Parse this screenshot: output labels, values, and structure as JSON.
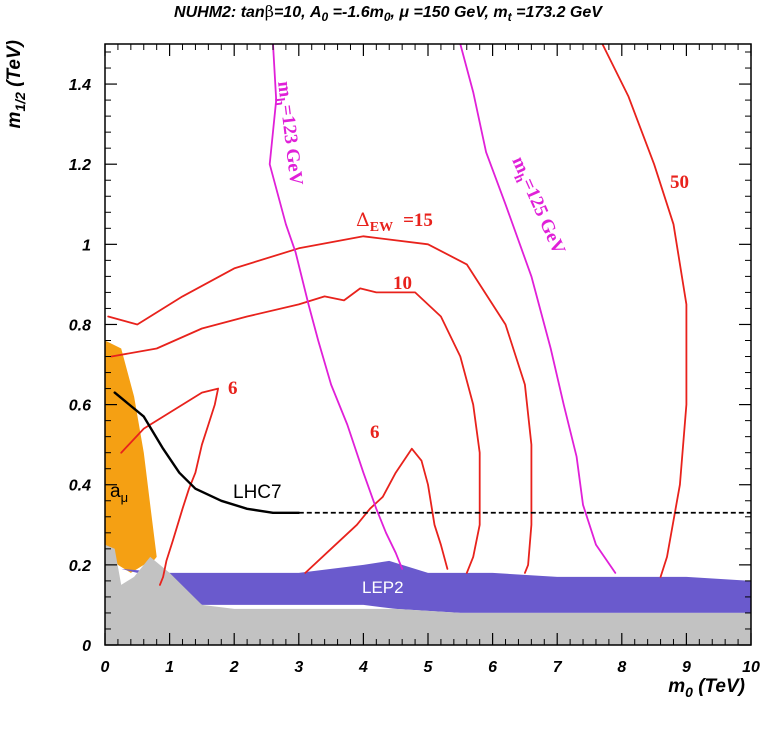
{
  "chart_data": {
    "type": "line",
    "title_prefix": "NUHM2: tan",
    "title_beta": "β",
    "title_a0": "=10, A",
    "title_sub0": "0",
    "title_a0val": " =-1.6m",
    "title_sub0b": "0",
    "title_mu": ", μ =150 GeV, m",
    "title_subt": "t",
    "title_mt": " =173.2 GeV",
    "xlabel_main": "m",
    "xlabel_sub": "0",
    "xlabel_unit": " (TeV)",
    "ylabel_main": "m",
    "ylabel_sub": "1/2",
    "ylabel_unit": " (TeV)",
    "xlim": [
      0,
      10
    ],
    "ylim": [
      0,
      1.5
    ],
    "x_ticks": [
      0,
      1,
      2,
      3,
      4,
      5,
      6,
      7,
      8,
      9,
      10
    ],
    "x_tick_labels": [
      "0",
      "1",
      "2",
      "3",
      "4",
      "5",
      "6",
      "7",
      "8",
      "9",
      "10"
    ],
    "y_ticks": [
      0,
      0.2,
      0.4,
      0.6,
      0.8,
      1.0,
      1.2,
      1.4
    ],
    "y_tick_labels": [
      "0",
      "0.2",
      "0.4",
      "0.6",
      "0.8",
      "1",
      "1.2",
      "1.4"
    ],
    "regions": [
      {
        "name": "a_mu",
        "label": "a",
        "label_sub": "μ",
        "color": "#f5a013",
        "points": [
          [
            0,
            0.76
          ],
          [
            0.25,
            0.74
          ],
          [
            0.45,
            0.62
          ],
          [
            0.6,
            0.48
          ],
          [
            0.7,
            0.35
          ],
          [
            0.8,
            0.22
          ],
          [
            0.7,
            0.2
          ],
          [
            0.6,
            0.2
          ],
          [
            0.4,
            0.18
          ],
          [
            0.2,
            0.2
          ],
          [
            0,
            0.25
          ]
        ]
      },
      {
        "name": "lep2",
        "label": "LEP2",
        "color": "#6a5acd",
        "points": [
          [
            0.25,
            0.19
          ],
          [
            1,
            0.18
          ],
          [
            2,
            0.18
          ],
          [
            3,
            0.18
          ],
          [
            4,
            0.2
          ],
          [
            4.4,
            0.21
          ],
          [
            5,
            0.18
          ],
          [
            6,
            0.18
          ],
          [
            7,
            0.17
          ],
          [
            8,
            0.17
          ],
          [
            9,
            0.17
          ],
          [
            10,
            0.16
          ],
          [
            10,
            0.08
          ],
          [
            9,
            0.08
          ],
          [
            7,
            0.08
          ],
          [
            5.5,
            0.08
          ],
          [
            4.5,
            0.09
          ],
          [
            4,
            0.1
          ],
          [
            2,
            0.1
          ],
          [
            1.5,
            0.1
          ],
          [
            1,
            0.16
          ],
          [
            0.5,
            0.18
          ],
          [
            0.25,
            0.19
          ]
        ]
      },
      {
        "name": "grey",
        "label": "",
        "color": "#c2c2c2",
        "points": [
          [
            0,
            0
          ],
          [
            0,
            0.25
          ],
          [
            0.15,
            0.24
          ],
          [
            0.25,
            0.15
          ],
          [
            0.45,
            0.17
          ],
          [
            0.7,
            0.22
          ],
          [
            1,
            0.18
          ],
          [
            1.5,
            0.1
          ],
          [
            2,
            0.09
          ],
          [
            3,
            0.09
          ],
          [
            4,
            0.09
          ],
          [
            4.5,
            0.09
          ],
          [
            5.5,
            0.08
          ],
          [
            7,
            0.08
          ],
          [
            10,
            0.08
          ],
          [
            10,
            0
          ]
        ]
      }
    ],
    "series": [
      {
        "name": "Δ_EW=6 (left)",
        "color": "#e8221c",
        "width": 1.8,
        "points": [
          [
            0.25,
            0.48
          ],
          [
            0.6,
            0.54
          ],
          [
            1,
            0.58
          ],
          [
            1.5,
            0.63
          ],
          [
            1.75,
            0.64
          ],
          [
            1.7,
            0.6
          ],
          [
            1.6,
            0.55
          ],
          [
            1.5,
            0.5
          ],
          [
            1.4,
            0.43
          ],
          [
            1.3,
            0.39
          ],
          [
            1.2,
            0.34
          ],
          [
            1.05,
            0.26
          ],
          [
            0.95,
            0.21
          ],
          [
            0.9,
            0.17
          ],
          [
            0.85,
            0.15
          ]
        ]
      },
      {
        "name": "Δ_EW=6 (right)",
        "color": "#e8221c",
        "width": 1.8,
        "points": [
          [
            3.1,
            0.18
          ],
          [
            3.5,
            0.24
          ],
          [
            3.9,
            0.3
          ],
          [
            4.1,
            0.34
          ],
          [
            4.3,
            0.37
          ],
          [
            4.5,
            0.43
          ],
          [
            4.75,
            0.49
          ],
          [
            4.9,
            0.46
          ],
          [
            5.0,
            0.4
          ],
          [
            5.1,
            0.3
          ],
          [
            5.2,
            0.25
          ],
          [
            5.3,
            0.19
          ]
        ]
      },
      {
        "name": "Δ_EW=10",
        "color": "#e8221c",
        "width": 1.8,
        "points": [
          [
            0.1,
            0.72
          ],
          [
            0.8,
            0.74
          ],
          [
            1.5,
            0.79
          ],
          [
            2.2,
            0.82
          ],
          [
            3.0,
            0.85
          ],
          [
            3.4,
            0.87
          ],
          [
            3.7,
            0.86
          ],
          [
            3.95,
            0.89
          ],
          [
            4.2,
            0.88
          ],
          [
            4.5,
            0.88
          ],
          [
            4.8,
            0.88
          ],
          [
            5.2,
            0.82
          ],
          [
            5.5,
            0.72
          ],
          [
            5.7,
            0.6
          ],
          [
            5.8,
            0.48
          ],
          [
            5.8,
            0.3
          ],
          [
            5.7,
            0.22
          ],
          [
            5.6,
            0.18
          ]
        ]
      },
      {
        "name": "Δ_EW=15",
        "color": "#e8221c",
        "width": 1.8,
        "points": [
          [
            0.05,
            0.82
          ],
          [
            0.5,
            0.8
          ],
          [
            1.2,
            0.87
          ],
          [
            2,
            0.94
          ],
          [
            3,
            0.99
          ],
          [
            4,
            1.02
          ],
          [
            5,
            1.0
          ],
          [
            5.6,
            0.95
          ],
          [
            6.2,
            0.8
          ],
          [
            6.5,
            0.65
          ],
          [
            6.6,
            0.5
          ],
          [
            6.6,
            0.3
          ],
          [
            6.55,
            0.2
          ],
          [
            6.5,
            0.18
          ]
        ]
      },
      {
        "name": "Δ_EW=50",
        "color": "#e8221c",
        "width": 1.8,
        "points": [
          [
            7.7,
            1.5
          ],
          [
            8.1,
            1.37
          ],
          [
            8.5,
            1.2
          ],
          [
            8.8,
            1.05
          ],
          [
            9.0,
            0.85
          ],
          [
            9.0,
            0.6
          ],
          [
            8.9,
            0.4
          ],
          [
            8.7,
            0.22
          ],
          [
            8.6,
            0.17
          ]
        ]
      },
      {
        "name": "m_h=123 GeV",
        "color": "#e020d8",
        "width": 1.8,
        "points": [
          [
            2.6,
            1.5
          ],
          [
            2.65,
            1.36
          ],
          [
            2.55,
            1.2
          ],
          [
            2.8,
            1.05
          ],
          [
            2.95,
            0.98
          ],
          [
            3.15,
            0.85
          ],
          [
            3.3,
            0.76
          ],
          [
            3.5,
            0.65
          ],
          [
            3.75,
            0.55
          ],
          [
            4.0,
            0.43
          ],
          [
            4.2,
            0.34
          ],
          [
            4.35,
            0.28
          ],
          [
            4.5,
            0.23
          ],
          [
            4.6,
            0.19
          ]
        ]
      },
      {
        "name": "m_h=125 GeV",
        "color": "#e020d8",
        "width": 1.8,
        "points": [
          [
            5.5,
            1.5
          ],
          [
            5.7,
            1.38
          ],
          [
            5.9,
            1.23
          ],
          [
            6.2,
            1.1
          ],
          [
            6.6,
            0.92
          ],
          [
            6.9,
            0.74
          ],
          [
            7.1,
            0.6
          ],
          [
            7.3,
            0.47
          ],
          [
            7.4,
            0.35
          ],
          [
            7.6,
            0.25
          ],
          [
            7.9,
            0.18
          ]
        ]
      },
      {
        "name": "LHC7",
        "color": "#000000",
        "width": 2.4,
        "points": [
          [
            0.15,
            0.63
          ],
          [
            0.6,
            0.57
          ],
          [
            0.9,
            0.49
          ],
          [
            1.15,
            0.43
          ],
          [
            1.4,
            0.39
          ],
          [
            1.8,
            0.36
          ],
          [
            2.2,
            0.34
          ],
          [
            2.6,
            0.33
          ],
          [
            3.0,
            0.33
          ]
        ]
      }
    ],
    "dashed_line": {
      "y": 0.33,
      "x_from": 3.0,
      "x_to": 10
    },
    "annotations": {
      "mh123": "m",
      "mh123_sub": "h",
      "mh123_rest": "=123 GeV",
      "mh125": "m",
      "mh125_sub": "h",
      "mh125_rest": "=125 GeV",
      "ew15_delta": "Δ",
      "ew15_sub": "EW",
      "ew15_val": "=15",
      "ew10": "10",
      "ew50": "50",
      "ew6_left": "6",
      "ew6_right": "6",
      "lhc7": "LHC7",
      "lep2": "LEP2",
      "amu": "a",
      "amu_sub": "μ"
    },
    "grid": false,
    "legend": "none"
  },
  "colors": {
    "ew_red": "#e8221c",
    "mh_magenta": "#e020d8",
    "amu_orange": "#f5a013",
    "lep2_blue": "#6a5acd",
    "grey_region": "#c2c2c2"
  }
}
